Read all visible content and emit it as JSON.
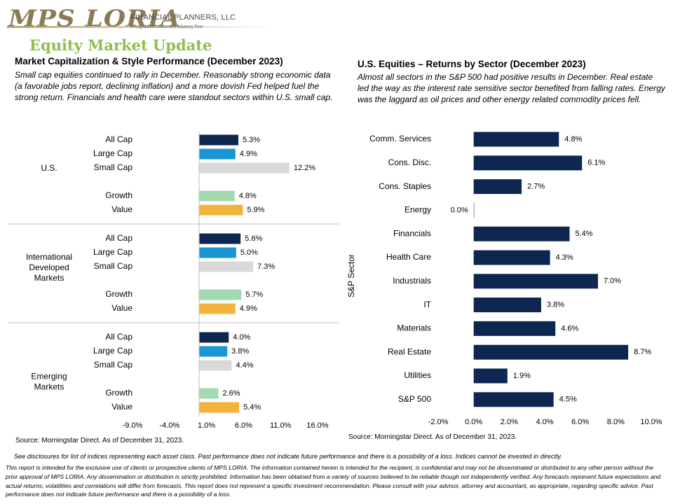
{
  "header": {
    "logo_main": "MPS LORIA",
    "logo_sub": "FINANCIAL PLANNERS, LLC",
    "logo_tag": "A Registered Investment Advisory Firm",
    "page_title": "Equity Market Update"
  },
  "left": {
    "title": "Market Capitalization & Style Performance (December 2023)",
    "description": "Small cap equities continued to rally in December. Reasonably strong economic data (a favorable jobs report, declining inflation) and a more dovish Fed helped fuel the strong return. Financials and health care were standout sectors within U.S. small cap.",
    "source": "Source: Morningstar Direct. As of December 31, 2023."
  },
  "right": {
    "title": "U.S. Equities – Returns by Sector (December 2023)",
    "description": "Almost all sectors in the S&P 500 had positive results in December. Real estate led the way as the interest rate sensitive sector benefited from falling rates. Energy was the laggard as oil prices and other energy related commodity prices fell.",
    "source": "Source: Morningstar Direct. As of December 31, 2023."
  },
  "footer": {
    "see_disclosures": "See disclosures for list of indices representing each asset class. Past performance does not indicate future performance and there is a possibility of a loss. Indices cannot be invested in directly.",
    "legal": "This report is intended for the exclusive use of clients or prospective clients of MPS LORIA. The information contained herein is intended for the recipient, is confidential and may not be disseminated or distributed to any other person without the prior approval of MPS LORIA. Any dissemination or distribution is strictly prohibited. Information has been obtained from a variety of sources believed to be reliable though not independently verified. Any forecasts represent future expectations and actual returns; volatilities and correlations will differ from forecasts. This report does not represent a specific investment recommendation. Please consult with your advisor, attorney and accountant, as appropriate, regarding specific advice. Past performance does not indicate future performance and there is a possibility of a loss."
  },
  "colors": {
    "navy": "#0d2750",
    "blue": "#1a96d6",
    "light_gray": "#d9d9d9",
    "green": "#a3d9b1",
    "gold": "#f2b33c",
    "title_green": "#8fbf4d"
  },
  "chart_data": [
    {
      "type": "bar",
      "orientation": "horizontal",
      "xlim": [
        -9,
        16
      ],
      "x_ticks": [
        "-9.0%",
        "-4.0%",
        "1.0%",
        "6.0%",
        "11.0%",
        "16.0%"
      ],
      "groups": [
        {
          "name": "U.S.",
          "items": [
            {
              "label": "All Cap",
              "value": 5.3,
              "value_label": "5.3%",
              "color": "#0d2750"
            },
            {
              "label": "Large Cap",
              "value": 4.9,
              "value_label": "4.9%",
              "color": "#1a96d6"
            },
            {
              "label": "Small Cap",
              "value": 12.2,
              "value_label": "12.2%",
              "color": "#d9d9d9"
            },
            {
              "label": "Growth",
              "value": 4.8,
              "value_label": "4.8%",
              "color": "#a3d9b1"
            },
            {
              "label": "Value",
              "value": 5.9,
              "value_label": "5.9%",
              "color": "#f2b33c"
            }
          ]
        },
        {
          "name": "International Developed Markets",
          "name_lines": [
            "International",
            "Developed",
            "Markets"
          ],
          "items": [
            {
              "label": "All Cap",
              "value": 5.6,
              "value_label": "5.6%",
              "color": "#0d2750"
            },
            {
              "label": "Large Cap",
              "value": 5.0,
              "value_label": "5.0%",
              "color": "#1a96d6"
            },
            {
              "label": "Small Cap",
              "value": 7.3,
              "value_label": "7.3%",
              "color": "#d9d9d9"
            },
            {
              "label": "Growth",
              "value": 5.7,
              "value_label": "5.7%",
              "color": "#a3d9b1"
            },
            {
              "label": "Value",
              "value": 4.9,
              "value_label": "4.9%",
              "color": "#f2b33c"
            }
          ]
        },
        {
          "name": "Emerging Markets",
          "name_lines": [
            "Emerging",
            "Markets"
          ],
          "items": [
            {
              "label": "All Cap",
              "value": 4.0,
              "value_label": "4.0%",
              "color": "#0d2750"
            },
            {
              "label": "Large Cap",
              "value": 3.8,
              "value_label": "3.8%",
              "color": "#1a96d6"
            },
            {
              "label": "Small Cap",
              "value": 4.4,
              "value_label": "4.4%",
              "color": "#d9d9d9"
            },
            {
              "label": "Growth",
              "value": 2.6,
              "value_label": "2.6%",
              "color": "#a3d9b1"
            },
            {
              "label": "Value",
              "value": 5.4,
              "value_label": "5.4%",
              "color": "#f2b33c"
            }
          ]
        }
      ]
    },
    {
      "type": "bar",
      "orientation": "horizontal",
      "ylabel": "S&P Sector",
      "xlim": [
        -2,
        10
      ],
      "x_ticks": [
        "-2.0%",
        "0.0%",
        "2.0%",
        "4.0%",
        "6.0%",
        "8.0%",
        "10.0%"
      ],
      "categories": [
        "Comm. Services",
        "Cons. Disc.",
        "Cons. Staples",
        "Energy",
        "Financials",
        "Health Care",
        "Industrials",
        "IT",
        "Materials",
        "Real Estate",
        "Utilities",
        "S&P 500"
      ],
      "values": [
        4.8,
        6.1,
        2.7,
        0.0,
        5.4,
        4.3,
        7.0,
        3.8,
        4.6,
        8.7,
        1.9,
        4.5
      ],
      "value_labels": [
        "4.8%",
        "6.1%",
        "2.7%",
        "0.0%",
        "5.4%",
        "4.3%",
        "7.0%",
        "3.8%",
        "4.6%",
        "8.7%",
        "1.9%",
        "4.5%"
      ],
      "color": "#0d2750"
    }
  ]
}
